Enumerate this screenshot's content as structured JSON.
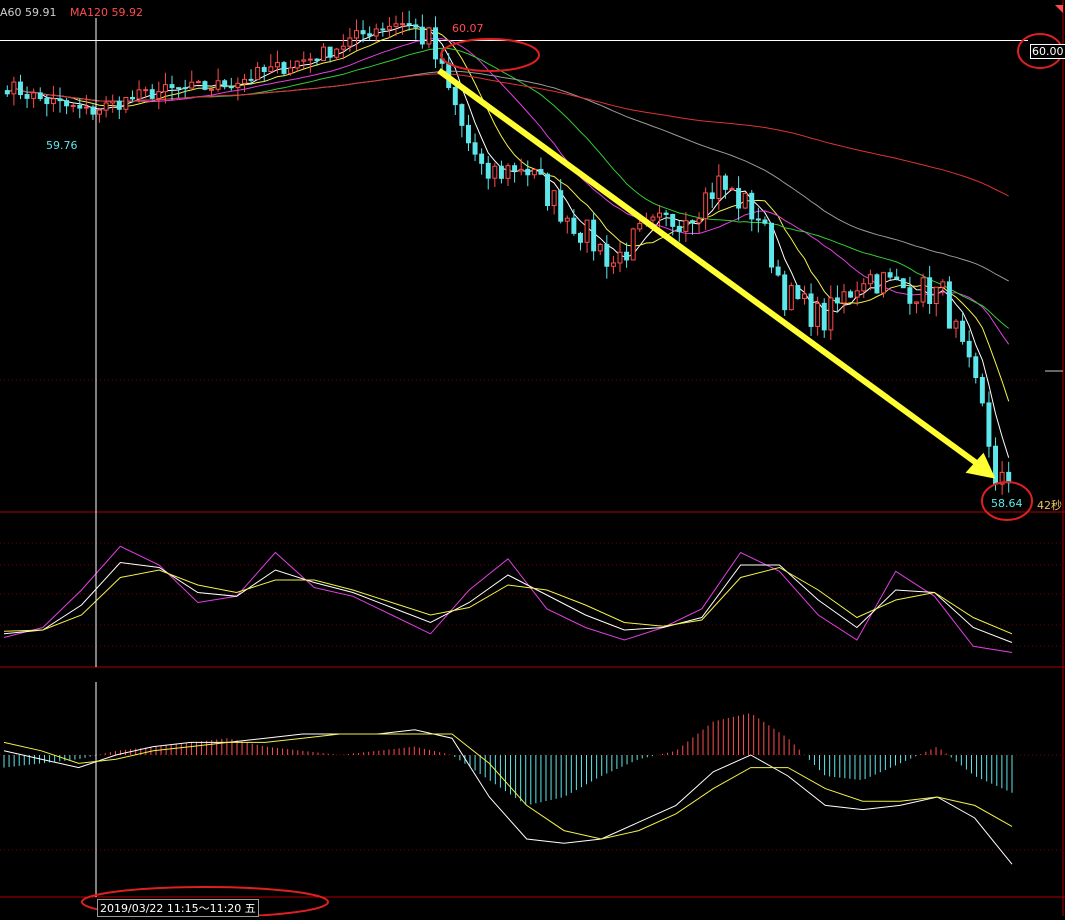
{
  "header": {
    "ma60_label": "A60 59.91",
    "ma120_label": "MA120 59.92"
  },
  "annotations": {
    "high_label": "60.07",
    "low_label": "59.76",
    "price_level_tag": "60.00",
    "last_price_label": "58.64",
    "countdown": "42秒",
    "crosshair_time": "2019/03/22 11:15～11:20 五"
  },
  "colors": {
    "up": "#ff4d4d",
    "down": "#5ee7ea",
    "ma_white": "#ffffff",
    "ma_yellow": "#f2f24a",
    "ma_magenta": "#e040e0",
    "ma_green": "#33cc33",
    "ma_gray": "#9a9a9a",
    "ma_red": "#dd3333",
    "panel_border": "#b00000",
    "arrow": "#ffff33",
    "marker_circle": "#e02020"
  },
  "chart_data": [
    {
      "type": "candlestick",
      "timeframe": "5-minute",
      "price_axis": {
        "ylim": [
          58.55,
          60.1
        ],
        "reference_level": 60.0
      },
      "labels": {
        "high": 60.07,
        "low_left": 59.76,
        "last": 58.64
      },
      "moving_averages_header": {
        "MA60": 59.91,
        "MA120": 59.92
      },
      "price_path_keypoints": {
        "x_index": [
          0,
          5,
          12,
          22,
          32,
          42,
          48,
          52,
          56,
          60,
          64,
          72,
          78,
          86,
          92,
          96,
          104,
          108,
          114,
          118,
          124,
          130,
          136,
          142,
          148,
          150,
          152
        ],
        "close": [
          59.86,
          59.82,
          59.78,
          59.84,
          59.86,
          59.92,
          59.96,
          60.0,
          60.04,
          60.06,
          60.0,
          59.58,
          59.62,
          59.44,
          59.32,
          59.4,
          59.48,
          59.56,
          59.46,
          59.22,
          59.14,
          59.28,
          59.24,
          59.22,
          58.86,
          58.66,
          58.64
        ]
      },
      "trend_arrow": {
        "from_price": 60.0,
        "to_price": 58.64
      }
    },
    {
      "type": "line",
      "indicator": "KDJ",
      "series": [
        {
          "color": "#e040e0",
          "values": [
            22,
            30,
            60,
            95,
            80,
            50,
            55,
            90,
            62,
            55,
            40,
            25,
            60,
            85,
            45,
            30,
            20,
            30,
            45,
            90,
            75,
            40,
            20,
            75,
            55,
            15,
            10
          ]
        },
        {
          "color": "#ffffff",
          "values": [
            25,
            28,
            48,
            82,
            78,
            58,
            55,
            76,
            66,
            58,
            46,
            34,
            50,
            72,
            56,
            40,
            28,
            30,
            38,
            80,
            80,
            52,
            30,
            60,
            58,
            30,
            18
          ]
        },
        {
          "color": "#f2f24a",
          "values": [
            27,
            28,
            40,
            70,
            76,
            64,
            58,
            68,
            68,
            60,
            50,
            40,
            46,
            64,
            60,
            48,
            34,
            31,
            36,
            70,
            78,
            60,
            38,
            52,
            58,
            38,
            25
          ]
        }
      ]
    },
    {
      "type": "bar",
      "indicator": "MACD",
      "histogram": [
        -0.03,
        -0.02,
        -0.01,
        0.01,
        0.02,
        0.03,
        0.04,
        0.02,
        0.01,
        0.0,
        0.01,
        0.02,
        0.0,
        -0.06,
        -0.12,
        -0.1,
        -0.05,
        -0.01,
        0.01,
        0.08,
        0.1,
        0.04,
        -0.05,
        -0.06,
        -0.02,
        0.02,
        -0.05,
        -0.09
      ],
      "series": [
        {
          "color": "#ffffff",
          "values": [
            0.01,
            -0.01,
            -0.03,
            0.0,
            0.02,
            0.03,
            0.03,
            0.04,
            0.05,
            0.05,
            0.05,
            0.06,
            0.04,
            -0.1,
            -0.2,
            -0.21,
            -0.2,
            -0.16,
            -0.12,
            -0.04,
            0.0,
            -0.05,
            -0.12,
            -0.13,
            -0.12,
            -0.1,
            -0.15,
            -0.26
          ]
        },
        {
          "color": "#f2f24a",
          "values": [
            0.03,
            0.01,
            -0.02,
            -0.01,
            0.01,
            0.02,
            0.03,
            0.03,
            0.04,
            0.05,
            0.05,
            0.05,
            0.05,
            -0.02,
            -0.12,
            -0.18,
            -0.2,
            -0.18,
            -0.14,
            -0.08,
            -0.03,
            -0.03,
            -0.08,
            -0.11,
            -0.11,
            -0.1,
            -0.12,
            -0.17
          ]
        }
      ]
    }
  ]
}
